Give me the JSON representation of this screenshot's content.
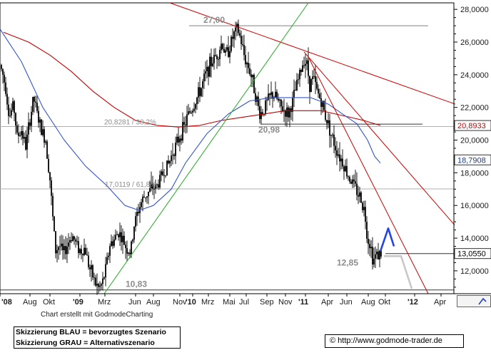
{
  "chart_data": {
    "type": "candlestick",
    "y_ticks": [
      "28,0000",
      "26,0000",
      "24,0000",
      "22,0000",
      "20,0000",
      "18,0000",
      "16,0000",
      "14,0000",
      "12,0000"
    ],
    "y_tick_values": [
      28,
      26,
      24,
      22,
      20,
      18,
      16,
      14,
      12
    ],
    "ylim": [
      10.6,
      28.4
    ],
    "x_ticks": [
      "'08",
      "Aug",
      "Okt",
      "'09",
      "Mrz",
      "Jun",
      "Aug",
      "Nov",
      "'10",
      "Mrz",
      "Mai",
      "Jul",
      "Sep",
      "Nov",
      "'11",
      "Apr",
      "Jun",
      "Aug",
      "Okt",
      "'12",
      "Apr"
    ],
    "x_tick_bold": [
      true,
      false,
      false,
      true,
      false,
      false,
      false,
      false,
      true,
      false,
      false,
      false,
      false,
      false,
      true,
      false,
      false,
      false,
      false,
      true,
      false
    ],
    "price_path": [
      [
        0,
        24.6
      ],
      [
        4,
        24.0
      ],
      [
        8,
        23.2
      ],
      [
        13,
        21.4
      ],
      [
        19,
        22.2
      ],
      [
        24,
        20.2
      ],
      [
        30,
        20.6
      ],
      [
        36,
        19.6
      ],
      [
        41,
        21.0
      ],
      [
        47,
        22.6
      ],
      [
        52,
        21.6
      ],
      [
        58,
        20.6
      ],
      [
        64,
        20.0
      ],
      [
        70,
        17.6
      ],
      [
        74,
        15.2
      ],
      [
        78,
        13.2
      ],
      [
        83,
        13.6
      ],
      [
        89,
        13.0
      ],
      [
        95,
        13.7
      ],
      [
        101,
        14.2
      ],
      [
        107,
        13.6
      ],
      [
        113,
        13.2
      ],
      [
        119,
        13.4
      ],
      [
        125,
        12.2
      ],
      [
        129,
        11.8
      ],
      [
        134,
        11.2
      ],
      [
        139,
        10.9
      ],
      [
        144,
        11.3
      ],
      [
        149,
        12.3
      ],
      [
        154,
        13.6
      ],
      [
        160,
        13.9
      ],
      [
        166,
        14.4
      ],
      [
        172,
        13.9
      ],
      [
        177,
        13.4
      ],
      [
        183,
        13.1
      ],
      [
        188,
        14.8
      ],
      [
        193,
        15.6
      ],
      [
        198,
        16.2
      ],
      [
        203,
        16.6
      ],
      [
        208,
        16.8
      ],
      [
        214,
        17.1
      ],
      [
        219,
        17.1
      ],
      [
        225,
        17.7
      ],
      [
        231,
        18.2
      ],
      [
        237,
        18.6
      ],
      [
        242,
        19.3
      ],
      [
        248,
        19.8
      ],
      [
        253,
        20.4
      ],
      [
        258,
        20.8
      ],
      [
        264,
        21.6
      ],
      [
        270,
        22.0
      ],
      [
        276,
        22.6
      ],
      [
        282,
        23.2
      ],
      [
        288,
        24.0
      ],
      [
        294,
        24.6
      ],
      [
        300,
        25.0
      ],
      [
        306,
        25.4
      ],
      [
        311,
        26.0
      ],
      [
        316,
        25.2
      ],
      [
        321,
        25.6
      ],
      [
        327,
        26.4
      ],
      [
        333,
        26.8
      ],
      [
        338,
        26.0
      ],
      [
        343,
        25.0
      ],
      [
        349,
        24.4
      ],
      [
        354,
        23.6
      ],
      [
        359,
        22.6
      ],
      [
        364,
        21.6
      ],
      [
        369,
        21.8
      ],
      [
        375,
        22.4
      ],
      [
        381,
        22.8
      ],
      [
        387,
        22.6
      ],
      [
        393,
        22.0
      ],
      [
        399,
        21.8
      ],
      [
        404,
        21.6
      ],
      [
        409,
        22.2
      ],
      [
        415,
        23.2
      ],
      [
        420,
        24.0
      ],
      [
        426,
        25.0
      ],
      [
        430,
        24.6
      ],
      [
        434,
        23.4
      ],
      [
        439,
        23.8
      ],
      [
        444,
        23.0
      ],
      [
        450,
        22.4
      ],
      [
        455,
        21.6
      ],
      [
        460,
        21.0
      ],
      [
        465,
        20.2
      ],
      [
        470,
        19.6
      ],
      [
        476,
        19.0
      ],
      [
        481,
        18.6
      ],
      [
        486,
        18.0
      ],
      [
        491,
        17.6
      ],
      [
        496,
        17.2
      ],
      [
        501,
        16.8
      ],
      [
        506,
        16.4
      ],
      [
        511,
        15.6
      ],
      [
        515,
        14.0
      ],
      [
        519,
        13.6
      ],
      [
        523,
        12.6
      ],
      [
        527,
        13.0
      ],
      [
        531,
        13.0
      ],
      [
        535,
        13.06
      ]
    ],
    "ma_blue_path": [
      [
        0,
        26.8
      ],
      [
        30,
        24.8
      ],
      [
        60,
        22.0
      ],
      [
        90,
        20.0
      ],
      [
        120,
        18.4
      ],
      [
        150,
        17.2
      ],
      [
        175,
        16.0
      ],
      [
        195,
        15.7
      ],
      [
        215,
        16.0
      ],
      [
        240,
        17.0
      ],
      [
        260,
        18.6
      ],
      [
        290,
        20.4
      ],
      [
        320,
        21.6
      ],
      [
        350,
        22.4
      ],
      [
        380,
        22.6
      ],
      [
        410,
        22.6
      ],
      [
        435,
        22.6
      ],
      [
        460,
        22.2
      ],
      [
        480,
        21.6
      ],
      [
        500,
        21.0
      ],
      [
        515,
        20.0
      ],
      [
        525,
        19.0
      ],
      [
        533,
        18.6
      ]
    ],
    "ma_red_path": [
      [
        5,
        26.6
      ],
      [
        40,
        26.0
      ],
      [
        70,
        25.2
      ],
      [
        100,
        24.2
      ],
      [
        130,
        23.0
      ],
      [
        160,
        22.0
      ],
      [
        190,
        21.2
      ],
      [
        220,
        20.9
      ],
      [
        250,
        20.8
      ],
      [
        280,
        20.9
      ],
      [
        310,
        21.2
      ],
      [
        340,
        21.4
      ],
      [
        370,
        21.6
      ],
      [
        400,
        21.8
      ],
      [
        430,
        21.8
      ],
      [
        450,
        21.8
      ],
      [
        470,
        21.6
      ],
      [
        490,
        21.4
      ],
      [
        510,
        21.2
      ],
      [
        525,
        21.0
      ],
      [
        533,
        20.9
      ]
    ],
    "red_trendline_top": [
      [
        238,
        28.4
      ],
      [
        638,
        22.2
      ]
    ],
    "red_trendline_mid": [
      [
        426,
        25.4
      ],
      [
        637,
        14.8
      ]
    ],
    "red_trendline_steep": [
      [
        433,
        25.0
      ],
      [
        600,
        10.6
      ]
    ],
    "green_trendline": [
      [
        146,
        10.6
      ],
      [
        432,
        28.4
      ]
    ],
    "blue_scenario": [
      [
        533,
        13.2
      ],
      [
        544,
        14.6
      ],
      [
        552,
        13.5
      ]
    ],
    "grey_scenario": [
      [
        538,
        12.9
      ],
      [
        562,
        12.9
      ],
      [
        577,
        10.9
      ]
    ],
    "hlines": [
      {
        "y": 27.0,
        "x0": 265,
        "x1": 600,
        "color": "#808080"
      },
      {
        "y": 20.98,
        "x0": 365,
        "x1": 592,
        "color": "#333333"
      },
      {
        "y": 17.0119,
        "x0": 0,
        "x1": 636,
        "color": "#b0b0b0"
      },
      {
        "y": 20.8281,
        "x0": 0,
        "x1": 636,
        "color": "#b0b0b0"
      },
      {
        "y": 13.055,
        "x0": 540,
        "x1": 636,
        "color": "#333333"
      },
      {
        "y": 10.83,
        "x0": 0,
        "x1": 636,
        "color": "#333333"
      }
    ],
    "annotations": [
      {
        "label": "27,00",
        "x": 285,
        "y": 27.0,
        "style": "bold"
      },
      {
        "label": "20,98",
        "x": 362,
        "y": 20.98,
        "style": "bold"
      },
      {
        "label": "20,8281 / 38,2%",
        "x": 146,
        "y": 20.8281,
        "style": "small"
      },
      {
        "label": "17,0119 / 61,8%",
        "x": 147,
        "y": 17.0119,
        "style": "small"
      },
      {
        "label": "12,85",
        "x": 472,
        "y": 12.85,
        "style": "bold"
      },
      {
        "label": "10,83",
        "x": 176,
        "y": 10.83,
        "style": "bold"
      }
    ],
    "price_labels": [
      {
        "text": "20,8933",
        "value": 20.8933,
        "bg": "#ffffff",
        "color": "#cc0000"
      },
      {
        "text": "18,7908",
        "value": 18.7908,
        "bg": "#ffffff",
        "color": "#1a3a9c"
      },
      {
        "text": "13,0550",
        "value": 13.055,
        "bg": "#ffffff",
        "color": "#000000"
      }
    ],
    "colors": {
      "candle": "#1a1a1a",
      "ma_blue": "#3355cc",
      "ma_red": "#c00000",
      "trend_red": "#cc0000",
      "trend_green": "#22aa22",
      "scenario_blue": "#2244ee",
      "scenario_grey": "#c8c8c8"
    }
  },
  "footer": {
    "credit": "Chart erstellt mit GodmodeCharting",
    "legend_line1": "Skizzierung BLAU = bevorzugtes Szenario",
    "legend_line2": "Skizzierung GRAU = Alternativszenario",
    "url": "© http://www.godmode-trader.de"
  }
}
